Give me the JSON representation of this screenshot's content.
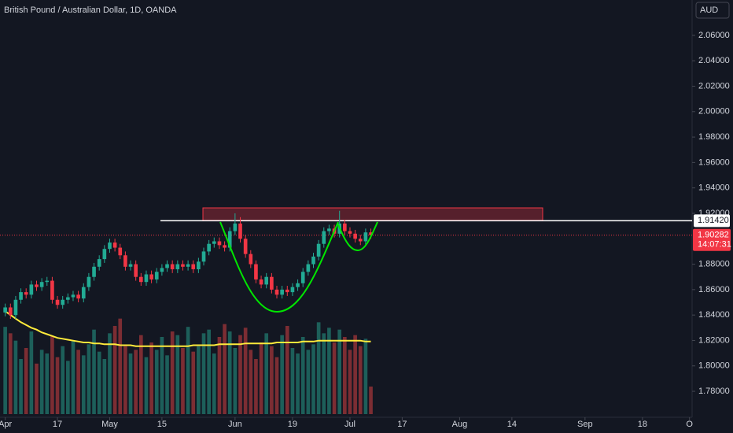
{
  "chart_data": {
    "type": "candlestick",
    "title": "British Pound / Australian Dollar, 1D, OANDA",
    "currency": "AUD",
    "up_color": "#22ab94",
    "down_color": "#f23645",
    "volume_up_color": "#1d5f5a",
    "volume_down_color": "#7c2d33",
    "ma_color": "#ffeb3b",
    "grid": false,
    "open": [
      1.842,
      1.846,
      1.84,
      1.852,
      1.858,
      1.856,
      1.864,
      1.862,
      1.866,
      1.867,
      1.852,
      1.848,
      1.852,
      1.854,
      1.856,
      1.853,
      1.862,
      1.87,
      1.878,
      1.884,
      1.892,
      1.897,
      1.893,
      1.887,
      1.878,
      1.88,
      1.87,
      1.866,
      1.872,
      1.868,
      1.874,
      1.877,
      1.88,
      1.876,
      1.88,
      1.878,
      1.88,
      1.876,
      1.882,
      1.89,
      1.896,
      1.898,
      1.895,
      1.893,
      1.906,
      1.912,
      1.9,
      1.888,
      1.88,
      1.868,
      1.864,
      1.87,
      1.86,
      1.856,
      1.86,
      1.858,
      1.862,
      1.865,
      1.874,
      1.88,
      1.886,
      1.896,
      1.906,
      1.908,
      1.904,
      1.912,
      1.906,
      1.904,
      1.9,
      1.898,
      1.905
    ],
    "high": [
      1.849,
      1.849,
      1.855,
      1.861,
      1.861,
      1.867,
      1.867,
      1.869,
      1.87,
      1.87,
      1.855,
      1.855,
      1.857,
      1.859,
      1.859,
      1.865,
      1.873,
      1.881,
      1.887,
      1.895,
      1.9,
      1.9,
      1.896,
      1.89,
      1.883,
      1.883,
      1.873,
      1.875,
      1.875,
      1.877,
      1.88,
      1.883,
      1.883,
      1.883,
      1.883,
      1.883,
      1.883,
      1.885,
      1.893,
      1.899,
      1.901,
      1.901,
      1.898,
      1.909,
      1.92,
      1.917,
      1.903,
      1.891,
      1.883,
      1.871,
      1.873,
      1.873,
      1.863,
      1.863,
      1.863,
      1.865,
      1.868,
      1.877,
      1.883,
      1.889,
      1.899,
      1.909,
      1.911,
      1.911,
      1.922,
      1.915,
      1.909,
      1.907,
      1.903,
      1.908,
      1.908
    ],
    "low": [
      1.839,
      1.837,
      1.837,
      1.849,
      1.853,
      1.853,
      1.859,
      1.859,
      1.863,
      1.849,
      1.845,
      1.845,
      1.849,
      1.851,
      1.85,
      1.85,
      1.859,
      1.867,
      1.875,
      1.881,
      1.889,
      1.89,
      1.884,
      1.875,
      1.875,
      1.867,
      1.863,
      1.863,
      1.865,
      1.865,
      1.871,
      1.874,
      1.873,
      1.873,
      1.875,
      1.875,
      1.873,
      1.873,
      1.879,
      1.887,
      1.893,
      1.892,
      1.89,
      1.89,
      1.903,
      1.897,
      1.885,
      1.877,
      1.865,
      1.861,
      1.861,
      1.857,
      1.853,
      1.853,
      1.855,
      1.855,
      1.859,
      1.862,
      1.871,
      1.877,
      1.883,
      1.893,
      1.903,
      1.901,
      1.901,
      1.903,
      1.901,
      1.897,
      1.895,
      1.895,
      1.9
    ],
    "close": [
      1.846,
      1.84,
      1.852,
      1.858,
      1.856,
      1.864,
      1.862,
      1.866,
      1.867,
      1.852,
      1.848,
      1.852,
      1.854,
      1.856,
      1.853,
      1.862,
      1.87,
      1.878,
      1.884,
      1.892,
      1.897,
      1.893,
      1.887,
      1.878,
      1.88,
      1.87,
      1.866,
      1.872,
      1.868,
      1.874,
      1.877,
      1.88,
      1.876,
      1.88,
      1.878,
      1.88,
      1.876,
      1.882,
      1.89,
      1.896,
      1.898,
      1.895,
      1.893,
      1.906,
      1.912,
      1.9,
      1.888,
      1.88,
      1.868,
      1.864,
      1.87,
      1.86,
      1.856,
      1.86,
      1.858,
      1.862,
      1.865,
      1.874,
      1.88,
      1.886,
      1.896,
      1.906,
      1.908,
      1.904,
      1.912,
      1.906,
      1.904,
      1.9,
      1.898,
      1.905,
      1.90282
    ],
    "volume": [
      95,
      88,
      80,
      60,
      72,
      90,
      55,
      70,
      66,
      85,
      62,
      74,
      58,
      80,
      70,
      64,
      76,
      92,
      68,
      60,
      88,
      96,
      104,
      74,
      66,
      70,
      86,
      62,
      78,
      70,
      84,
      64,
      90,
      86,
      72,
      95,
      68,
      74,
      88,
      92,
      66,
      84,
      98,
      90,
      72,
      86,
      94,
      70,
      60,
      78,
      88,
      74,
      62,
      86,
      96,
      72,
      66,
      84,
      70,
      76,
      100,
      88,
      94,
      78,
      92,
      84,
      70,
      86,
      74,
      82,
      30
    ],
    "volume_ma": [
      112,
      108,
      104,
      100,
      97,
      94,
      92,
      89,
      87,
      85,
      83,
      82,
      81,
      80,
      79,
      78,
      78,
      77,
      77,
      76,
      76,
      76,
      75,
      75,
      75,
      74,
      74,
      74,
      74,
      74,
      74,
      74,
      74,
      74,
      74,
      74,
      75,
      75,
      75,
      75,
      75,
      76,
      76,
      76,
      76,
      76,
      77,
      77,
      77,
      77,
      77,
      77,
      78,
      78,
      78,
      78,
      78,
      79,
      79,
      79,
      80,
      80,
      80,
      80,
      80,
      80,
      80,
      80,
      80,
      79,
      79
    ],
    "volume_ylim": [
      0,
      120
    ],
    "ylim": [
      1.7596,
      2.0878
    ],
    "yticks": [
      {
        "value": 2.06,
        "label": "2.06000"
      },
      {
        "value": 2.04,
        "label": "2.04000"
      },
      {
        "value": 2.02,
        "label": "2.02000"
      },
      {
        "value": 2.0,
        "label": "2.00000"
      },
      {
        "value": 1.98,
        "label": "1.98000"
      },
      {
        "value": 1.96,
        "label": "1.96000"
      },
      {
        "value": 1.94,
        "label": "1.94000"
      },
      {
        "value": 1.92,
        "label": "1.92000"
      },
      {
        "value": 1.88,
        "label": "1.88000"
      },
      {
        "value": 1.86,
        "label": "1.86000"
      },
      {
        "value": 1.84,
        "label": "1.84000"
      },
      {
        "value": 1.82,
        "label": "1.82000"
      },
      {
        "value": 1.8,
        "label": "1.80000"
      },
      {
        "value": 1.78,
        "label": "1.78000"
      }
    ],
    "xlim": [
      -1,
      131.5
    ],
    "xticks": [
      {
        "value": 0,
        "label": "Apr"
      },
      {
        "value": 10,
        "label": "17"
      },
      {
        "value": 20,
        "label": "May"
      },
      {
        "value": 30,
        "label": "15"
      },
      {
        "value": 44,
        "label": "Jun"
      },
      {
        "value": 55,
        "label": "19"
      },
      {
        "value": 66,
        "label": "Jul"
      },
      {
        "value": 76,
        "label": "17"
      },
      {
        "value": 87,
        "label": "Aug"
      },
      {
        "value": 97,
        "label": "14"
      },
      {
        "value": 111,
        "label": "Sep"
      },
      {
        "value": 122,
        "label": "18"
      },
      {
        "value": 131,
        "label": "O"
      }
    ],
    "resistance": {
      "value": 1.9142,
      "label": "1.91420"
    },
    "zone": [
      1.9144,
      1.9243
    ],
    "last_price": {
      "value": 1.90282,
      "label": "1.90282"
    },
    "countdown": "14:07:31"
  }
}
